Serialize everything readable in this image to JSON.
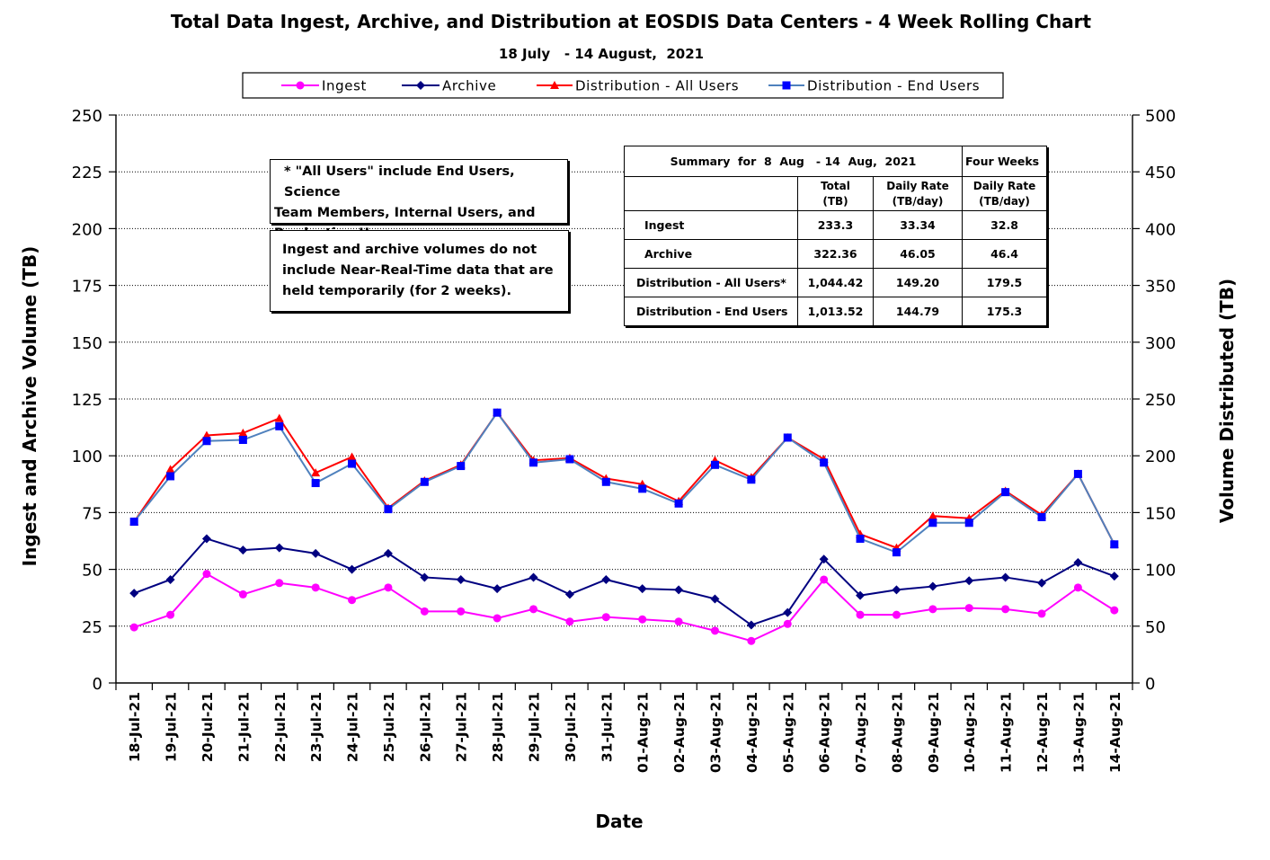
{
  "chart_data": {
    "type": "line",
    "title": "Total Data Ingest, Archive, and  Distribution at EOSDIS Data Centers - 4 Week Rolling Chart",
    "subtitle": "18 July   - 14 August,  2021",
    "xlabel": "Date",
    "ylabel_left": "Ingest and Archive Volume (TB)",
    "ylabel_right": "Volume Distributed (TB)",
    "ylim_left": [
      0,
      250
    ],
    "ylim_right": [
      0,
      500
    ],
    "yticks_left": [
      0,
      25,
      50,
      75,
      100,
      125,
      150,
      175,
      200,
      225,
      250
    ],
    "yticks_right": [
      0,
      50,
      100,
      150,
      200,
      250,
      300,
      350,
      400,
      450,
      500
    ],
    "grid": "horizontal dotted",
    "legend_position": "top",
    "categories": [
      "18-Jul-21",
      "19-Jul-21",
      "20-Jul-21",
      "21-Jul-21",
      "22-Jul-21",
      "23-Jul-21",
      "24-Jul-21",
      "25-Jul-21",
      "26-Jul-21",
      "27-Jul-21",
      "28-Jul-21",
      "29-Jul-21",
      "30-Jul-21",
      "31-Jul-21",
      "01-Aug-21",
      "02-Aug-21",
      "03-Aug-21",
      "04-Aug-21",
      "05-Aug-21",
      "06-Aug-21",
      "07-Aug-21",
      "08-Aug-21",
      "09-Aug-21",
      "10-Aug-21",
      "11-Aug-21",
      "12-Aug-21",
      "13-Aug-21",
      "14-Aug-21"
    ],
    "series": [
      {
        "name": "Ingest",
        "axis": "left",
        "color": "#ff00ff",
        "marker": "circle",
        "values": [
          24.5,
          30,
          48,
          39,
          44,
          42,
          36.5,
          42,
          31.5,
          31.5,
          28.5,
          32.5,
          27,
          29,
          28,
          27,
          23,
          18.5,
          26,
          45.5,
          30,
          30,
          32.5,
          33,
          32.5,
          30.5,
          42,
          32
        ]
      },
      {
        "name": "Archive",
        "axis": "left",
        "color": "#000080",
        "marker": "diamond",
        "values": [
          39.5,
          45.5,
          63.5,
          58.5,
          59.5,
          57,
          50,
          57,
          46.5,
          45.5,
          41.5,
          46.5,
          39,
          45.5,
          41.5,
          41,
          37,
          25.5,
          31,
          54.5,
          38.5,
          41,
          42.5,
          45,
          46.5,
          44,
          53,
          47
        ]
      },
      {
        "name": "Distribution - All Users",
        "axis": "right",
        "color": "#ff0000",
        "marker": "triangle",
        "values": [
          142,
          188,
          218,
          220,
          233,
          185,
          199,
          154,
          178,
          192,
          238,
          196,
          198,
          180,
          175,
          160,
          196,
          181,
          216,
          197,
          131,
          119,
          147,
          145,
          169,
          148,
          184,
          122
        ]
      },
      {
        "name": "Distribution - End Users",
        "axis": "right",
        "color": "#0000ff",
        "line_color": "#4f81bd",
        "marker": "square",
        "values": [
          142,
          182,
          213,
          214,
          226,
          176,
          193,
          153,
          177,
          191,
          238,
          194,
          197,
          177,
          171,
          158,
          192,
          179,
          216,
          194,
          127,
          115,
          141,
          141,
          168,
          146,
          184,
          122
        ]
      }
    ]
  },
  "notes": {
    "all_users": [
      "* \"All Users\" include End Users, Science",
      "Team Members,  Internal Users, and",
      "Production Users."
    ],
    "nrt": [
      "Ingest and archive volumes do not",
      "include Near-Real-Time data that are",
      "held temporarily (for 2 weeks)."
    ]
  },
  "summary": {
    "title": "Summary  for  8  Aug   - 14  Aug,  2021",
    "four_weeks": "Four Weeks",
    "col_total": [
      "Total",
      "(TB)"
    ],
    "col_daily": [
      "Daily Rate",
      "(TB/day)"
    ],
    "col_four": [
      "Daily Rate",
      "(TB/day)"
    ],
    "rows": [
      {
        "label": "Ingest",
        "total": "233.3",
        "daily": "33.34",
        "four": "32.8"
      },
      {
        "label": "Archive",
        "total": "322.36",
        "daily": "46.05",
        "four": "46.4"
      },
      {
        "label": "Distribution - All Users*",
        "total": "1,044.42",
        "daily": "149.20",
        "four": "179.5"
      },
      {
        "label": "Distribution - End Users",
        "total": "1,013.52",
        "daily": "144.79",
        "four": "175.3"
      }
    ]
  }
}
